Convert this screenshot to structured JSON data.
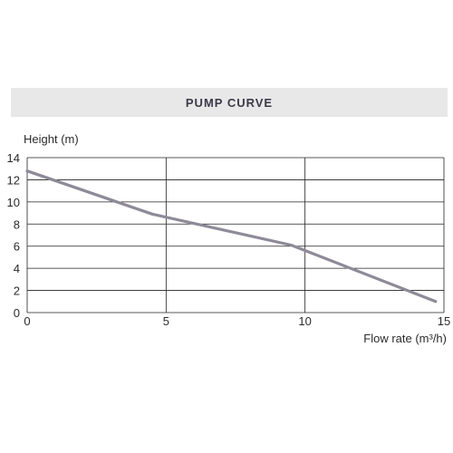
{
  "chart_data": {
    "type": "line",
    "title": "PUMP CURVE",
    "ylabel": "Height (m)",
    "xlabel": "Flow rate (m³/h)",
    "xlim": [
      0,
      15
    ],
    "ylim": [
      0,
      14
    ],
    "x_ticks": [
      "0",
      "5",
      "10",
      "15"
    ],
    "y_ticks": [
      "0",
      "2",
      "4",
      "6",
      "8",
      "10",
      "12",
      "14"
    ],
    "grid": true,
    "series": [
      {
        "x": [
          0,
          4.5,
          9.5,
          14.7
        ],
        "y": [
          12.8,
          8.9,
          6.1,
          1.0
        ]
      }
    ],
    "colors": {
      "line": "#8e8a98",
      "grid": "#222222",
      "band": "#e8e8e9"
    }
  }
}
